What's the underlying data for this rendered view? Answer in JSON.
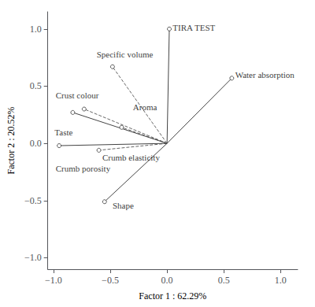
{
  "chart_data": {
    "type": "vector",
    "xlabel": "Factor 1 : 62.29%",
    "ylabel": "Factor 2 : 20.52%",
    "xlim": [
      -1.05,
      1.15
    ],
    "ylim": [
      -1.1,
      1.15
    ],
    "xticks": [
      {
        "value": -1.0,
        "label": "−1.0"
      },
      {
        "value": -0.5,
        "label": "−0.5"
      },
      {
        "value": 0.0,
        "label": "0.0"
      },
      0.5,
      {
        "value": 1.0,
        "label": "1.0"
      }
    ],
    "yticks": [
      {
        "value": -1.0,
        "label": "−1.0"
      },
      {
        "value": -0.5,
        "label": "−0.5"
      },
      {
        "value": 0.0,
        "label": "0.0"
      },
      0.5,
      {
        "value": 1.0,
        "label": "1.0"
      }
    ],
    "grid": false,
    "legend": false,
    "marker": "circle",
    "vectors": [
      {
        "x": 0.02,
        "y": 1.0,
        "line_style": "solid",
        "color": "#444444"
      },
      {
        "x": 0.57,
        "y": 0.57,
        "line_style": "solid",
        "color": "#444444"
      },
      {
        "x": -0.48,
        "y": 0.67,
        "line_style": "dashed",
        "color": "#666666"
      },
      {
        "x": -0.73,
        "y": 0.3,
        "line_style": "dashed",
        "color": "#666666"
      },
      {
        "x": -0.4,
        "y": 0.14,
        "line_style": "dashed",
        "color": "#666666"
      },
      {
        "x": -0.83,
        "y": 0.27,
        "line_style": "solid",
        "color": "#444444"
      },
      {
        "x": -0.6,
        "y": -0.06,
        "line_style": "dashed",
        "color": "#666666"
      },
      {
        "x": -0.95,
        "y": -0.02,
        "line_style": "solid",
        "color": "#444444"
      },
      {
        "x": -0.55,
        "y": -0.51,
        "line_style": "solid",
        "color": "#444444"
      }
    ],
    "annotations": [
      {
        "text": "TIRA TEST",
        "x": 0.05,
        "y": 1.01
      },
      {
        "text": "Water absorption",
        "x": 0.6,
        "y": 0.6
      },
      {
        "text": "Specific volume",
        "x": -0.62,
        "y": 0.78
      },
      {
        "text": "Crust colour",
        "x": -0.98,
        "y": 0.42
      },
      {
        "text": "Aroma",
        "x": -0.3,
        "y": 0.32
      },
      {
        "text": "Taste",
        "x": -0.99,
        "y": 0.1
      },
      {
        "text": "Crumb elasticity",
        "x": -0.57,
        "y": -0.12
      },
      {
        "text": "Crumb porosity",
        "x": -0.98,
        "y": -0.22
      },
      {
        "text": "Shape",
        "x": -0.48,
        "y": -0.54
      }
    ]
  }
}
